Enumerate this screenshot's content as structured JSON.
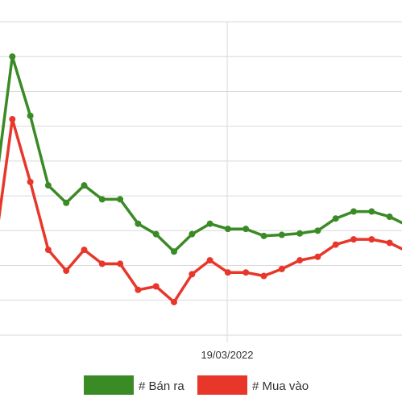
{
  "chart_data": {
    "type": "line",
    "x_tick_labels": [
      "19/03/2022"
    ],
    "y_grid_lines": 9,
    "ylim": [
      0,
      9
    ],
    "grid": true,
    "legend_position": "bottom",
    "series": [
      {
        "name": "# Bán ra",
        "color": "#3a8a26",
        "values": [
          4.0,
          8.0,
          6.3,
          4.3,
          3.8,
          4.3,
          3.9,
          3.9,
          3.2,
          2.9,
          2.4,
          2.9,
          3.2,
          3.05,
          3.05,
          2.85,
          2.88,
          2.92,
          3.0,
          3.35,
          3.55,
          3.55,
          3.4,
          3.15
        ]
      },
      {
        "name": "# Mua vào",
        "color": "#e8372a",
        "values": [
          2.4,
          6.2,
          4.4,
          2.45,
          1.85,
          2.45,
          2.05,
          2.05,
          1.3,
          1.4,
          0.95,
          1.75,
          2.15,
          1.8,
          1.8,
          1.7,
          1.9,
          2.15,
          2.25,
          2.6,
          2.75,
          2.75,
          2.65,
          2.4
        ]
      }
    ]
  }
}
